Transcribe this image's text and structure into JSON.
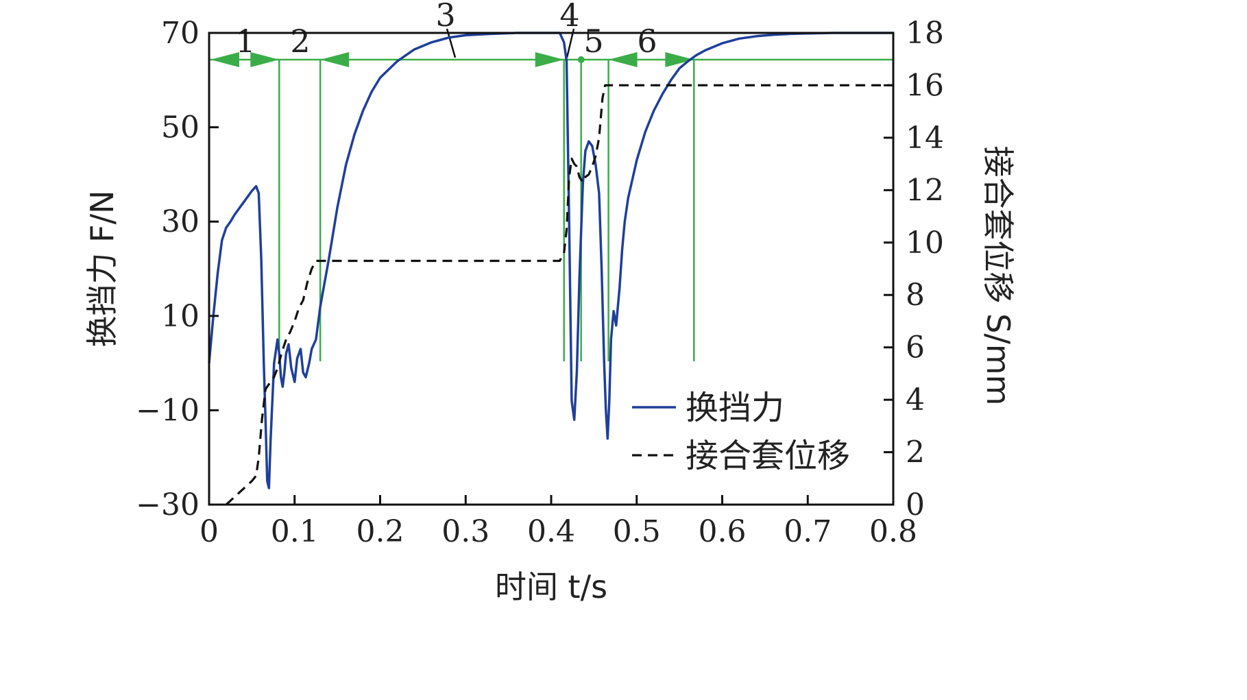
{
  "chart_data": {
    "type": "line",
    "xlabel": "时间 t/s",
    "ylabel_left": "换挡力 F/N",
    "ylabel_right": "接合套位移 S/mm",
    "xlim": [
      0,
      0.8
    ],
    "ylim_left": [
      -30,
      70
    ],
    "ylim_right": [
      0,
      18
    ],
    "x_ticks": [
      "0",
      "0.1",
      "0.2",
      "0.3",
      "0.4",
      "0.5",
      "0.6",
      "0.7",
      "0.8"
    ],
    "y_left_ticks": [
      "70",
      "50",
      "30",
      "10",
      "−10",
      "−30"
    ],
    "y_right_ticks": [
      "18",
      "16",
      "14",
      "12",
      "10",
      "8",
      "6",
      "4",
      "2",
      "0"
    ],
    "grid": false,
    "legend": {
      "placement": "bottom-right",
      "entries": [
        "换挡力",
        "接合套位移"
      ]
    },
    "colors": {
      "force": "#1f3f99",
      "displacement": "#111111",
      "phase": "#3aad48"
    },
    "phase_labels": [
      "1",
      "2",
      "3",
      "4",
      "5",
      "6"
    ],
    "phase_boundaries_s": [
      0,
      0.082,
      0.13,
      0.415,
      0.435,
      0.467,
      0.567,
      0.8
    ],
    "series": [
      {
        "name": "换挡力",
        "axis": "left",
        "style": "solid",
        "x": [
          0,
          0.005,
          0.01,
          0.015,
          0.02,
          0.025,
          0.03,
          0.04,
          0.05,
          0.055,
          0.058,
          0.061,
          0.064,
          0.066,
          0.068,
          0.07,
          0.072,
          0.074,
          0.076,
          0.08,
          0.082,
          0.084,
          0.086,
          0.088,
          0.09,
          0.093,
          0.096,
          0.1,
          0.103,
          0.107,
          0.11,
          0.113,
          0.117,
          0.12,
          0.125,
          0.13,
          0.14,
          0.15,
          0.16,
          0.17,
          0.18,
          0.19,
          0.2,
          0.22,
          0.24,
          0.26,
          0.28,
          0.3,
          0.33,
          0.36,
          0.39,
          0.41,
          0.415,
          0.418,
          0.421,
          0.424,
          0.427,
          0.43,
          0.433,
          0.437,
          0.44,
          0.444,
          0.448,
          0.452,
          0.456,
          0.459,
          0.462,
          0.464,
          0.466,
          0.468,
          0.47,
          0.473,
          0.476,
          0.478,
          0.48,
          0.483,
          0.486,
          0.49,
          0.5,
          0.51,
          0.52,
          0.53,
          0.54,
          0.55,
          0.56,
          0.57,
          0.58,
          0.6,
          0.62,
          0.64,
          0.66,
          0.68,
          0.7,
          0.73,
          0.76,
          0.8
        ],
        "values": [
          0,
          10,
          19,
          26,
          28.7,
          30,
          31.5,
          34,
          36.5,
          37.5,
          36,
          22,
          0,
          -12,
          -25,
          -26.5,
          -16,
          -8,
          0,
          5,
          2,
          -3,
          -5,
          -2,
          2,
          4,
          -1,
          -4,
          1,
          3,
          -2,
          -3,
          0,
          3,
          5,
          12,
          22,
          33,
          42,
          48.5,
          53.5,
          57.5,
          60.5,
          64,
          66.5,
          68,
          69,
          69.5,
          69.8,
          70,
          70,
          70,
          68,
          64,
          30,
          -8,
          -12,
          -2,
          18,
          38,
          45,
          47,
          46,
          42,
          36,
          20,
          0,
          -10,
          -16,
          -8,
          5,
          11,
          8,
          12,
          16,
          24,
          30,
          35,
          43,
          49,
          53.5,
          57,
          60,
          62.5,
          64,
          65.3,
          66.3,
          67.8,
          68.8,
          69.3,
          69.6,
          69.8,
          69.9,
          70,
          70,
          70
        ]
      },
      {
        "name": "接合套位移",
        "axis": "right",
        "style": "dashed",
        "x": [
          0.02,
          0.03,
          0.04,
          0.05,
          0.055,
          0.058,
          0.062,
          0.066,
          0.07,
          0.075,
          0.08,
          0.085,
          0.09,
          0.095,
          0.1,
          0.105,
          0.11,
          0.115,
          0.12,
          0.125,
          0.13,
          0.14,
          0.2,
          0.3,
          0.4,
          0.41,
          0.415,
          0.418,
          0.421,
          0.424,
          0.427,
          0.43,
          0.433,
          0.437,
          0.44,
          0.444,
          0.448,
          0.452,
          0.456,
          0.46,
          0.463,
          0.466,
          0.468,
          0.47,
          0.473,
          0.476,
          0.48,
          0.5,
          0.6,
          0.7,
          0.8
        ],
        "values": [
          0,
          0.3,
          0.6,
          0.9,
          1.1,
          1.8,
          3.3,
          4.4,
          4.6,
          4.8,
          5.2,
          5.8,
          6.3,
          6.6,
          7.0,
          7.5,
          7.8,
          8.5,
          9.0,
          9.3,
          9.3,
          9.3,
          9.3,
          9.3,
          9.3,
          9.3,
          9.6,
          10.5,
          12.5,
          13.2,
          13.0,
          12.9,
          12.5,
          12.3,
          12.5,
          12.6,
          12.9,
          13.3,
          14.0,
          15.5,
          16.0,
          16.0,
          16.0,
          16.0,
          16.0,
          16.0,
          16.0,
          16.0,
          16.0,
          16.0,
          16.0
        ]
      }
    ]
  }
}
